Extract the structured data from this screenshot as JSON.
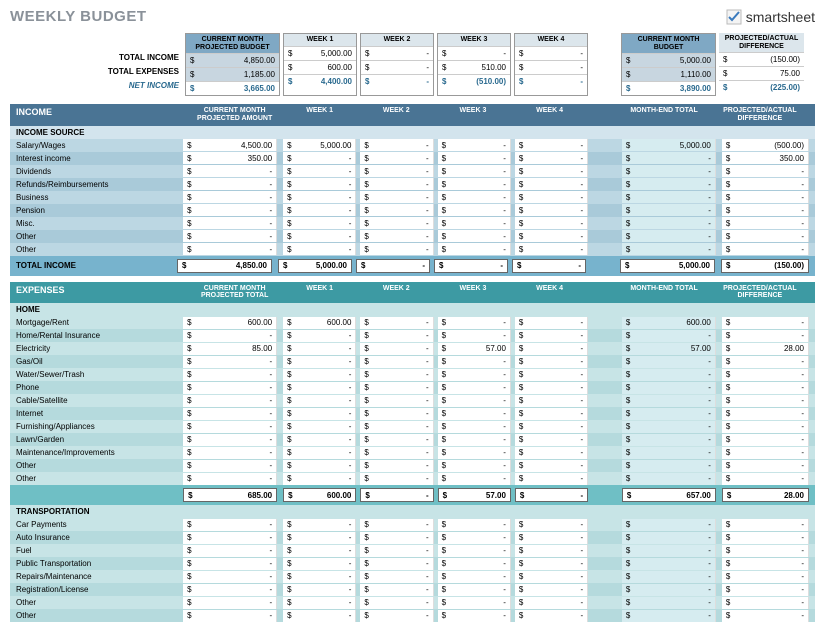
{
  "title": "WEEKLY BUDGET",
  "logo": "smartsheet",
  "summary": {
    "headers": {
      "cm": "CURRENT MONTH PROJECTED BUDGET",
      "w1": "WEEK 1",
      "w2": "WEEK 2",
      "w3": "WEEK 3",
      "w4": "WEEK 4",
      "cmb": "CURRENT MONTH BUDGET",
      "pa": "PROJECTED/ACTUAL DIFFERENCE"
    },
    "rows": {
      "income": {
        "label": "TOTAL INCOME",
        "cm": "4,850.00",
        "w1": "5,000.00",
        "w2": "-",
        "w3": "-",
        "w4": "-",
        "cmb": "5,000.00",
        "pa": "(150.00)"
      },
      "expenses": {
        "label": "TOTAL EXPENSES",
        "cm": "1,185.00",
        "w1": "600.00",
        "w2": "-",
        "w3": "510.00",
        "w4": "-",
        "cmb": "1,110.00",
        "pa": "75.00"
      },
      "net": {
        "label": "NET INCOME",
        "cm": "3,665.00",
        "w1": "4,400.00",
        "w2": "-",
        "w3": "(510.00)",
        "w4": "-",
        "cmb": "3,890.00",
        "pa": "(225.00)"
      }
    }
  },
  "income": {
    "bar": "INCOME",
    "colheads": {
      "cm": "CURRENT MONTH PROJECTED AMOUNT",
      "w1": "WEEK 1",
      "w2": "WEEK 2",
      "w3": "WEEK 3",
      "w4": "WEEK 4",
      "me": "MONTH-END TOTAL",
      "pa": "PROJECTED/ACTUAL DIFFERENCE"
    },
    "subhead": "INCOME SOURCE",
    "rows": [
      {
        "label": "Salary/Wages",
        "cm": "4,500.00",
        "w1": "5,000.00",
        "w2": "-",
        "w3": "-",
        "w4": "-",
        "me": "5,000.00",
        "pa": "(500.00)"
      },
      {
        "label": "Interest income",
        "cm": "350.00",
        "w1": "-",
        "w2": "-",
        "w3": "-",
        "w4": "-",
        "me": "-",
        "pa": "350.00"
      },
      {
        "label": "Dividends",
        "cm": "-",
        "w1": "-",
        "w2": "-",
        "w3": "-",
        "w4": "-",
        "me": "-",
        "pa": "-"
      },
      {
        "label": "Refunds/Reimbursements",
        "cm": "-",
        "w1": "-",
        "w2": "-",
        "w3": "-",
        "w4": "-",
        "me": "-",
        "pa": "-"
      },
      {
        "label": "Business",
        "cm": "-",
        "w1": "-",
        "w2": "-",
        "w3": "-",
        "w4": "-",
        "me": "-",
        "pa": "-"
      },
      {
        "label": "Pension",
        "cm": "-",
        "w1": "-",
        "w2": "-",
        "w3": "-",
        "w4": "-",
        "me": "-",
        "pa": "-"
      },
      {
        "label": "Misc.",
        "cm": "-",
        "w1": "-",
        "w2": "-",
        "w3": "-",
        "w4": "-",
        "me": "-",
        "pa": "-"
      },
      {
        "label": "Other",
        "cm": "-",
        "w1": "-",
        "w2": "-",
        "w3": "-",
        "w4": "-",
        "me": "-",
        "pa": "-"
      },
      {
        "label": "Other",
        "cm": "-",
        "w1": "-",
        "w2": "-",
        "w3": "-",
        "w4": "-",
        "me": "-",
        "pa": "-"
      }
    ],
    "total": {
      "label": "TOTAL INCOME",
      "cm": "4,850.00",
      "w1": "5,000.00",
      "w2": "-",
      "w3": "-",
      "w4": "-",
      "me": "5,000.00",
      "pa": "(150.00)"
    }
  },
  "expenses": {
    "bar": "EXPENSES",
    "colheads": {
      "cm": "CURRENT MONTH PROJECTED TOTAL",
      "w1": "WEEK 1",
      "w2": "WEEK 2",
      "w3": "WEEK 3",
      "w4": "WEEK 4",
      "me": "MONTH-END TOTAL",
      "pa": "PROJECTED/ACTUAL DIFFERENCE"
    },
    "groups": [
      {
        "name": "HOME",
        "rows": [
          {
            "label": "Mortgage/Rent",
            "cm": "600.00",
            "w1": "600.00",
            "w2": "-",
            "w3": "-",
            "w4": "-",
            "me": "600.00",
            "pa": "-"
          },
          {
            "label": "Home/Rental Insurance",
            "cm": "-",
            "w1": "-",
            "w2": "-",
            "w3": "-",
            "w4": "-",
            "me": "-",
            "pa": "-"
          },
          {
            "label": "Electricity",
            "cm": "85.00",
            "w1": "-",
            "w2": "-",
            "w3": "57.00",
            "w4": "-",
            "me": "57.00",
            "pa": "28.00"
          },
          {
            "label": "Gas/Oil",
            "cm": "-",
            "w1": "-",
            "w2": "-",
            "w3": "-",
            "w4": "-",
            "me": "-",
            "pa": "-"
          },
          {
            "label": "Water/Sewer/Trash",
            "cm": "-",
            "w1": "-",
            "w2": "-",
            "w3": "-",
            "w4": "-",
            "me": "-",
            "pa": "-"
          },
          {
            "label": "Phone",
            "cm": "-",
            "w1": "-",
            "w2": "-",
            "w3": "-",
            "w4": "-",
            "me": "-",
            "pa": "-"
          },
          {
            "label": "Cable/Satellite",
            "cm": "-",
            "w1": "-",
            "w2": "-",
            "w3": "-",
            "w4": "-",
            "me": "-",
            "pa": "-"
          },
          {
            "label": "Internet",
            "cm": "-",
            "w1": "-",
            "w2": "-",
            "w3": "-",
            "w4": "-",
            "me": "-",
            "pa": "-"
          },
          {
            "label": "Furnishing/Appliances",
            "cm": "-",
            "w1": "-",
            "w2": "-",
            "w3": "-",
            "w4": "-",
            "me": "-",
            "pa": "-"
          },
          {
            "label": "Lawn/Garden",
            "cm": "-",
            "w1": "-",
            "w2": "-",
            "w3": "-",
            "w4": "-",
            "me": "-",
            "pa": "-"
          },
          {
            "label": "Maintenance/Improvements",
            "cm": "-",
            "w1": "-",
            "w2": "-",
            "w3": "-",
            "w4": "-",
            "me": "-",
            "pa": "-"
          },
          {
            "label": "Other",
            "cm": "-",
            "w1": "-",
            "w2": "-",
            "w3": "-",
            "w4": "-",
            "me": "-",
            "pa": "-"
          },
          {
            "label": "Other",
            "cm": "-",
            "w1": "-",
            "w2": "-",
            "w3": "-",
            "w4": "-",
            "me": "-",
            "pa": "-"
          }
        ],
        "subtotal": {
          "cm": "685.00",
          "w1": "600.00",
          "w2": "-",
          "w3": "57.00",
          "w4": "-",
          "me": "657.00",
          "pa": "28.00"
        }
      },
      {
        "name": "TRANSPORTATION",
        "rows": [
          {
            "label": "Car Payments",
            "cm": "-",
            "w1": "-",
            "w2": "-",
            "w3": "-",
            "w4": "-",
            "me": "-",
            "pa": "-"
          },
          {
            "label": "Auto Insurance",
            "cm": "-",
            "w1": "-",
            "w2": "-",
            "w3": "-",
            "w4": "-",
            "me": "-",
            "pa": "-"
          },
          {
            "label": "Fuel",
            "cm": "-",
            "w1": "-",
            "w2": "-",
            "w3": "-",
            "w4": "-",
            "me": "-",
            "pa": "-"
          },
          {
            "label": "Public Transportation",
            "cm": "-",
            "w1": "-",
            "w2": "-",
            "w3": "-",
            "w4": "-",
            "me": "-",
            "pa": "-"
          },
          {
            "label": "Repairs/Maintenance",
            "cm": "-",
            "w1": "-",
            "w2": "-",
            "w3": "-",
            "w4": "-",
            "me": "-",
            "pa": "-"
          },
          {
            "label": "Registration/License",
            "cm": "-",
            "w1": "-",
            "w2": "-",
            "w3": "-",
            "w4": "-",
            "me": "-",
            "pa": "-"
          },
          {
            "label": "Other",
            "cm": "-",
            "w1": "-",
            "w2": "-",
            "w3": "-",
            "w4": "-",
            "me": "-",
            "pa": "-"
          },
          {
            "label": "Other",
            "cm": "-",
            "w1": "-",
            "w2": "-",
            "w3": "-",
            "w4": "-",
            "me": "-",
            "pa": "-"
          }
        ]
      }
    ]
  },
  "colors": {
    "steel": "#4a7494",
    "teal": "#3d9aa3",
    "incRow": "#bcd7e3",
    "incAlt": "#a9cad9",
    "expRow": "#c7e4e6",
    "expAlt": "#b5dadd"
  }
}
